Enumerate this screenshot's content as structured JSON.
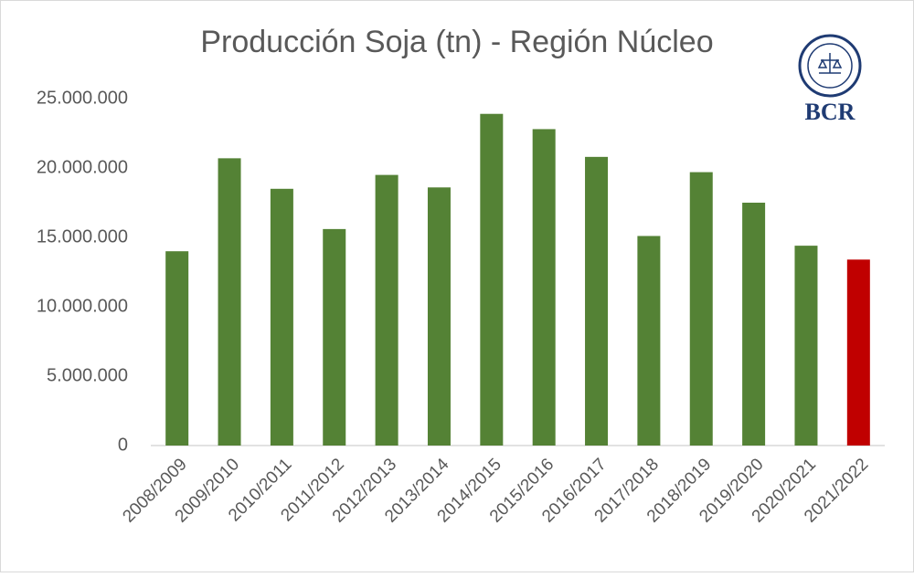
{
  "chart_data": {
    "type": "bar",
    "title": "Producción Soja (tn) - Región Núcleo",
    "categories": [
      "2008/2009",
      "2009/2010",
      "2010/2011",
      "2011/2012",
      "2012/2013",
      "2013/2014",
      "2014/2015",
      "2015/2016",
      "2016/2017",
      "2017/2018",
      "2018/2019",
      "2019/2020",
      "2020/2021",
      "2021/2022"
    ],
    "values": [
      14000000,
      20700000,
      18500000,
      15600000,
      19500000,
      18600000,
      23900000,
      22800000,
      20800000,
      15100000,
      19700000,
      17500000,
      14400000,
      13400000
    ],
    "colors": [
      "#548235",
      "#548235",
      "#548235",
      "#548235",
      "#548235",
      "#548235",
      "#548235",
      "#548235",
      "#548235",
      "#548235",
      "#548235",
      "#548235",
      "#548235",
      "#c00000"
    ],
    "ylim": [
      0,
      25000000
    ],
    "yticks": [
      0,
      {
        "value": 5000000,
        "label": "5.000.000"
      },
      {
        "value": 10000000,
        "label": "10.000.000"
      },
      {
        "value": 15000000,
        "label": "15.000.000"
      },
      {
        "value": 20000000,
        "label": "20.000.000"
      },
      {
        "value": 25000000,
        "label": "25.000.000"
      }
    ],
    "grid": false
  },
  "logo": {
    "text": "BCR"
  }
}
